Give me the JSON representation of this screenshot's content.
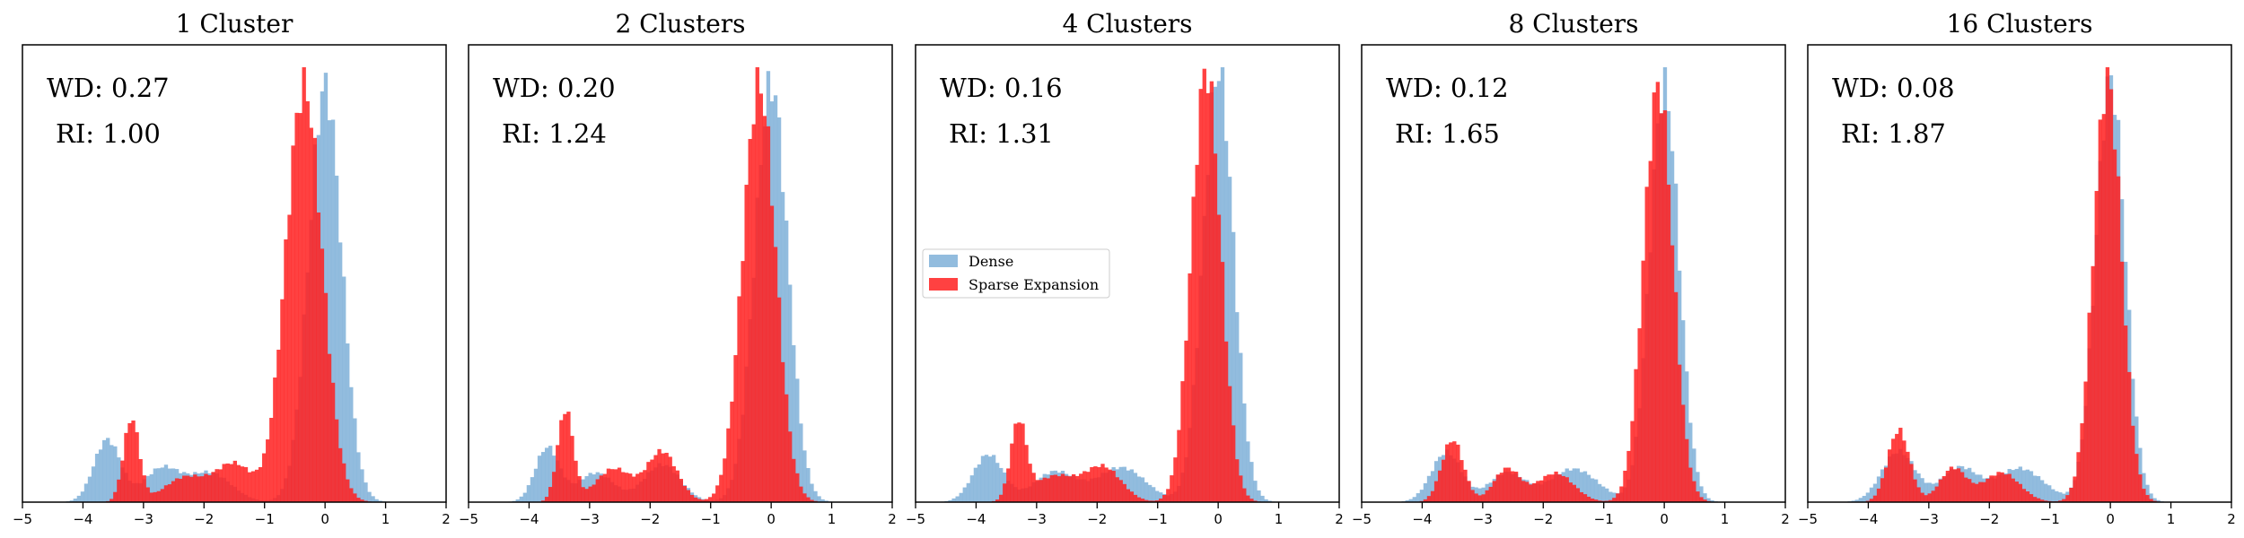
{
  "figure": {
    "colors": {
      "dense": "#7fb0d8",
      "sparse": "#ff2020",
      "axes": "#000000"
    },
    "legend": {
      "placement": "center-left of panel 3",
      "dense_label": "Dense",
      "sparse_label": "Sparse Expansion"
    }
  },
  "chart_data": [
    {
      "type": "histogram",
      "title": "1 Cluster",
      "annotations": {
        "wd": "WD: 0.27",
        "ri": "RI: 1.00"
      },
      "xlim": [
        -5,
        2
      ],
      "x_ticks": [
        -5,
        -4,
        -3,
        -2,
        -1,
        0,
        1,
        2
      ],
      "series": [
        {
          "name": "Dense",
          "components": [
            {
              "mean": -3.6,
              "sd": 0.22,
              "weight": 0.15
            },
            {
              "mean": -2.7,
              "sd": 0.3,
              "weight": 0.08
            },
            {
              "mean": -1.9,
              "sd": 0.35,
              "weight": 0.07
            },
            {
              "mean": 0.0,
              "sd": 0.27,
              "weight": 1.0
            }
          ]
        },
        {
          "name": "Sparse Expansion",
          "components": [
            {
              "mean": -3.2,
              "sd": 0.13,
              "weight": 0.2
            },
            {
              "mean": -2.3,
              "sd": 0.35,
              "weight": 0.06
            },
            {
              "mean": -1.5,
              "sd": 0.3,
              "weight": 0.09
            },
            {
              "mean": -0.35,
              "sd": 0.3,
              "weight": 1.0
            }
          ]
        }
      ]
    },
    {
      "type": "histogram",
      "title": "2 Clusters",
      "annotations": {
        "wd": "WD: 0.20",
        "ri": "RI: 1.24"
      },
      "xlim": [
        -5,
        2
      ],
      "x_ticks": [
        -5,
        -4,
        -3,
        -2,
        -1,
        0,
        1,
        2
      ],
      "series": [
        {
          "name": "Dense",
          "components": [
            {
              "mean": -3.7,
              "sd": 0.2,
              "weight": 0.13
            },
            {
              "mean": -2.9,
              "sd": 0.3,
              "weight": 0.07
            },
            {
              "mean": -1.8,
              "sd": 0.3,
              "weight": 0.09
            },
            {
              "mean": 0.0,
              "sd": 0.27,
              "weight": 1.0
            }
          ]
        },
        {
          "name": "Sparse Expansion",
          "components": [
            {
              "mean": -3.4,
              "sd": 0.13,
              "weight": 0.22
            },
            {
              "mean": -2.6,
              "sd": 0.3,
              "weight": 0.08
            },
            {
              "mean": -1.8,
              "sd": 0.25,
              "weight": 0.12
            },
            {
              "mean": -0.2,
              "sd": 0.27,
              "weight": 1.0
            }
          ]
        }
      ]
    },
    {
      "type": "histogram",
      "title": "4 Clusters",
      "annotations": {
        "wd": "WD: 0.16",
        "ri": "RI: 1.31"
      },
      "xlim": [
        -5,
        2
      ],
      "x_ticks": [
        -5,
        -4,
        -3,
        -2,
        -1,
        0,
        1,
        2
      ],
      "series": [
        {
          "name": "Dense",
          "components": [
            {
              "mean": -3.8,
              "sd": 0.25,
              "weight": 0.11
            },
            {
              "mean": -2.7,
              "sd": 0.35,
              "weight": 0.07
            },
            {
              "mean": -1.6,
              "sd": 0.4,
              "weight": 0.08
            },
            {
              "mean": 0.0,
              "sd": 0.25,
              "weight": 1.0
            }
          ]
        },
        {
          "name": "Sparse Expansion",
          "components": [
            {
              "mean": -3.3,
              "sd": 0.13,
              "weight": 0.18
            },
            {
              "mean": -2.7,
              "sd": 0.35,
              "weight": 0.06
            },
            {
              "mean": -1.9,
              "sd": 0.3,
              "weight": 0.08
            },
            {
              "mean": -0.2,
              "sd": 0.24,
              "weight": 1.0
            }
          ]
        }
      ]
    },
    {
      "type": "histogram",
      "title": "8 Clusters",
      "annotations": {
        "wd": "WD: 0.12",
        "ri": "RI: 1.65"
      },
      "xlim": [
        -5,
        2
      ],
      "x_ticks": [
        -5,
        -4,
        -3,
        -2,
        -1,
        0,
        1,
        2
      ],
      "series": [
        {
          "name": "Dense",
          "components": [
            {
              "mean": -3.6,
              "sd": 0.25,
              "weight": 0.12
            },
            {
              "mean": -2.6,
              "sd": 0.3,
              "weight": 0.07
            },
            {
              "mean": -1.5,
              "sd": 0.4,
              "weight": 0.08
            },
            {
              "mean": 0.0,
              "sd": 0.24,
              "weight": 1.0
            }
          ]
        },
        {
          "name": "Sparse Expansion",
          "components": [
            {
              "mean": -3.5,
              "sd": 0.18,
              "weight": 0.15
            },
            {
              "mean": -2.6,
              "sd": 0.22,
              "weight": 0.08
            },
            {
              "mean": -1.8,
              "sd": 0.3,
              "weight": 0.07
            },
            {
              "mean": -0.1,
              "sd": 0.24,
              "weight": 1.0
            }
          ]
        }
      ]
    },
    {
      "type": "histogram",
      "title": "16 Clusters",
      "annotations": {
        "wd": "WD: 0.08",
        "ri": "RI: 1.87"
      },
      "xlim": [
        -5,
        2
      ],
      "x_ticks": [
        -5,
        -4,
        -3,
        -2,
        -1,
        0,
        1,
        2
      ],
      "series": [
        {
          "name": "Dense",
          "components": [
            {
              "mean": -3.5,
              "sd": 0.28,
              "weight": 0.12
            },
            {
              "mean": -2.5,
              "sd": 0.3,
              "weight": 0.08
            },
            {
              "mean": -1.5,
              "sd": 0.4,
              "weight": 0.08
            },
            {
              "mean": 0.0,
              "sd": 0.24,
              "weight": 1.0
            }
          ]
        },
        {
          "name": "Sparse Expansion",
          "components": [
            {
              "mean": -3.5,
              "sd": 0.18,
              "weight": 0.17
            },
            {
              "mean": -2.6,
              "sd": 0.22,
              "weight": 0.08
            },
            {
              "mean": -1.8,
              "sd": 0.3,
              "weight": 0.07
            },
            {
              "mean": -0.05,
              "sd": 0.23,
              "weight": 1.0
            }
          ]
        }
      ]
    }
  ]
}
